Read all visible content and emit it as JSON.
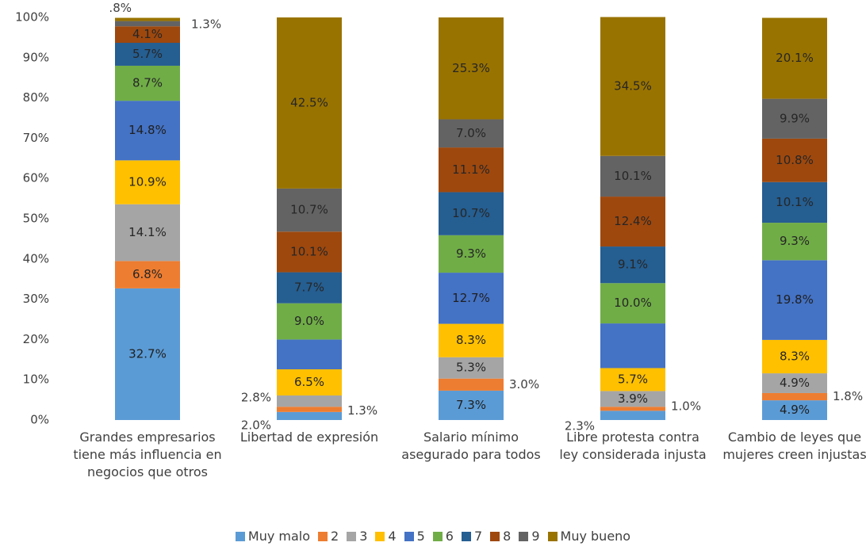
{
  "chart_data": {
    "type": "stacked_bar",
    "categories": [
      "Grandes empresarios tiene más influencia en negocios que otros",
      "Libertad de expresión",
      "Salario mínimo asegurado para todos",
      "Libre protesta contra ley considerada injusta",
      "Cambio de leyes que mujeres creen injustas"
    ],
    "ylim": [
      0,
      100
    ],
    "yticks": [
      {
        "value": 0,
        "label": "0%"
      },
      {
        "value": 10,
        "label": "10%"
      },
      {
        "value": 20,
        "label": "20%"
      },
      {
        "value": 30,
        "label": "30%"
      },
      {
        "value": 40,
        "label": "40%"
      },
      {
        "value": 50,
        "label": "50%"
      },
      {
        "value": 60,
        "label": "60%"
      },
      {
        "value": 70,
        "label": "70%"
      },
      {
        "value": 80,
        "label": "80%"
      },
      {
        "value": 90,
        "label": "90%"
      },
      {
        "value": 100,
        "label": "100%"
      }
    ],
    "grid": false,
    "legend": "bottom",
    "series": [
      {
        "name": "Muy malo",
        "color": "#5b9bd5",
        "values": [
          32.7,
          2.0,
          7.3,
          2.3,
          4.9
        ],
        "value_labels": [
          "32.7%",
          "2.0%",
          "7.3%",
          "2.3%",
          "4.9%"
        ]
      },
      {
        "name": "2",
        "color": "#ed7d31",
        "values": [
          6.8,
          1.3,
          3.0,
          1.0,
          1.8
        ],
        "value_labels": [
          "6.8%",
          "1.3%",
          "3.0%",
          "1.0%",
          "1.8%"
        ]
      },
      {
        "name": "3",
        "color": "#a5a5a5",
        "values": [
          14.1,
          2.8,
          5.3,
          3.9,
          4.9
        ],
        "value_labels": [
          "14.1%",
          "2.8%",
          "5.3%",
          "3.9%",
          "4.9%"
        ]
      },
      {
        "name": "4",
        "color": "#ffc000",
        "values": [
          10.9,
          6.5,
          8.3,
          5.7,
          8.3
        ],
        "value_labels": [
          "10.9%",
          "6.5%",
          "8.3%",
          "5.7%",
          "8.3%"
        ]
      },
      {
        "name": "5",
        "color": "#4472c4",
        "values": [
          14.8,
          7.4,
          12.7,
          11.1,
          19.8
        ],
        "value_labels": [
          "14.8%",
          null,
          "12.7%",
          null,
          "19.8%"
        ]
      },
      {
        "name": "6",
        "color": "#70ad47",
        "values": [
          8.7,
          9.0,
          9.3,
          10.0,
          9.3
        ],
        "value_labels": [
          "8.7%",
          "9.0%",
          "9.3%",
          "10.0%",
          "9.3%"
        ]
      },
      {
        "name": "7",
        "color": "#255e91",
        "values": [
          5.7,
          7.7,
          10.7,
          9.1,
          10.1
        ],
        "value_labels": [
          "5.7%",
          "7.7%",
          "10.7%",
          "9.1%",
          "10.1%"
        ]
      },
      {
        "name": "8",
        "color": "#9e480e",
        "values": [
          4.1,
          10.1,
          11.1,
          12.4,
          10.8
        ],
        "value_labels": [
          "4.1%",
          "10.1%",
          "11.1%",
          "12.4%",
          "10.8%"
        ]
      },
      {
        "name": "9",
        "color": "#636363",
        "values": [
          1.3,
          10.7,
          7.0,
          10.1,
          9.9
        ],
        "value_labels": [
          "1.3%",
          "10.7%",
          "7.0%",
          "10.1%",
          "9.9%"
        ]
      },
      {
        "name": "Muy bueno",
        "color": "#997300",
        "values": [
          0.8,
          42.5,
          25.3,
          34.5,
          20.1
        ],
        "value_labels": [
          ".8%",
          "42.5%",
          "25.3%",
          "34.5%",
          "20.1%"
        ]
      }
    ]
  }
}
